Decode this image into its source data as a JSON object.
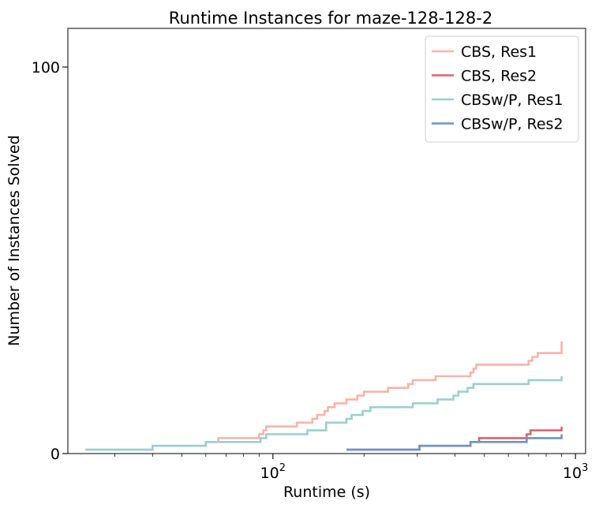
{
  "chart_data": {
    "type": "line",
    "title": "Runtime Instances for maze-128-128-2",
    "xlabel": "Runtime (s)",
    "ylabel": "Number of Instances Solved",
    "xscale": "log",
    "xlim": [
      21,
      1080
    ],
    "ylim": [
      0,
      110
    ],
    "x_ticks": [
      {
        "value": 100,
        "base": "10",
        "exponent": "2"
      },
      {
        "value": 1000,
        "base": "10",
        "exponent": "3"
      }
    ],
    "y_ticks": [
      {
        "value": 0,
        "label": "0"
      },
      {
        "value": 100,
        "label": "100"
      }
    ],
    "grid": false,
    "legend": "top-right",
    "series": [
      {
        "name": "CBS, Res1",
        "color": "#f7b4a7",
        "x": [
          24,
          40,
          60,
          66,
          90,
          93,
          95,
          120,
          135,
          140,
          148,
          152,
          160,
          175,
          190,
          200,
          240,
          280,
          290,
          345,
          450,
          460,
          470,
          700,
          720,
          750,
          900
        ],
        "y": [
          1,
          2,
          3,
          4,
          5,
          6,
          7,
          8,
          9,
          10,
          11,
          12,
          13,
          14,
          15,
          16,
          17,
          18,
          19,
          20,
          21,
          22,
          23,
          24,
          25,
          26,
          29
        ]
      },
      {
        "name": "CBS, Res2",
        "color": "#e0606e",
        "x": [
          175,
          305,
          450,
          480,
          690,
          710,
          900
        ],
        "y": [
          1,
          2,
          3,
          4,
          5,
          6,
          7
        ]
      },
      {
        "name": "CBSw/P, Res1",
        "color": "#99d0d0",
        "x": [
          24,
          40,
          60,
          91,
          95,
          130,
          150,
          175,
          182,
          198,
          210,
          290,
          350,
          395,
          410,
          440,
          460,
          700,
          900
        ],
        "y": [
          1,
          2,
          3,
          4,
          5,
          6,
          8,
          9,
          10,
          11,
          12,
          13,
          14,
          15,
          16,
          17,
          18,
          19,
          20
        ]
      },
      {
        "name": "CBSw/P, Res2",
        "color": "#6b96c3",
        "x": [
          175,
          305,
          450,
          690,
          900
        ],
        "y": [
          1,
          2,
          3,
          4,
          5
        ]
      }
    ]
  }
}
